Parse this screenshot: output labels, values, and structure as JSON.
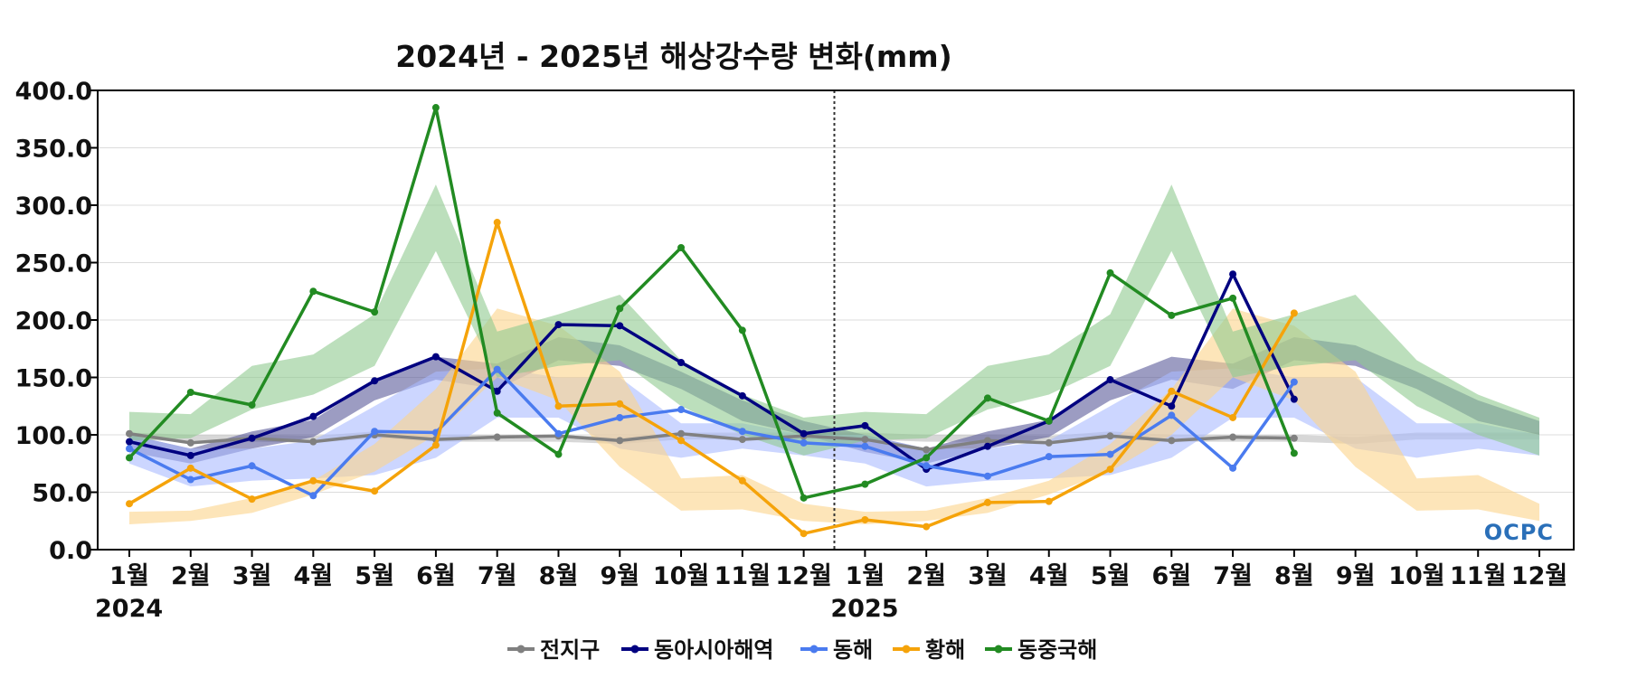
{
  "chart_data": {
    "type": "line",
    "title": "2024년 - 2025년 해상강수량 변화(mm)",
    "xlabel": "",
    "ylabel": "",
    "ylim": [
      0,
      400
    ],
    "yticks": [
      "0.0",
      "50.0",
      "100.0",
      "150.0",
      "200.0",
      "250.0",
      "300.0",
      "350.0",
      "400.0"
    ],
    "categories": [
      "1월",
      "2월",
      "3월",
      "4월",
      "5월",
      "6월",
      "7월",
      "8월",
      "9월",
      "10월",
      "11월",
      "12월",
      "1월",
      "2월",
      "3월",
      "4월",
      "5월",
      "6월",
      "7월",
      "8월",
      "9월",
      "10월",
      "11월",
      "12월"
    ],
    "year_labels": [
      {
        "index": 0,
        "label": "2024"
      },
      {
        "index": 12,
        "label": "2025"
      }
    ],
    "divider_after_index": 11,
    "grid": "horizontal",
    "legend_position": "bottom-center",
    "watermark": "OCPC",
    "series": [
      {
        "name": "전지구",
        "color": "#808080",
        "values": [
          101,
          93,
          97,
          94,
          100,
          96,
          98,
          99,
          95,
          101,
          96,
          99,
          96,
          87,
          95,
          93,
          99,
          95,
          98,
          97,
          null,
          null,
          null,
          null
        ]
      },
      {
        "name": "동아시아해역",
        "color": "#000080",
        "values": [
          94,
          82,
          97,
          116,
          147,
          168,
          138,
          196,
          195,
          163,
          134,
          101,
          108,
          70,
          90,
          112,
          148,
          125,
          240,
          131,
          null,
          null,
          null,
          null
        ]
      },
      {
        "name": "동해",
        "color": "#4a7bef",
        "values": [
          88,
          61,
          73,
          47,
          103,
          102,
          157,
          101,
          115,
          122,
          103,
          93,
          90,
          73,
          64,
          81,
          83,
          117,
          71,
          146,
          null,
          null,
          null,
          null
        ]
      },
      {
        "name": "황해",
        "color": "#f5a30a",
        "values": [
          40,
          71,
          44,
          60,
          51,
          91,
          285,
          125,
          127,
          95,
          60,
          14,
          26,
          20,
          41,
          42,
          70,
          138,
          115,
          206,
          null,
          null,
          null,
          null
        ]
      },
      {
        "name": "동중국해",
        "color": "#228b22",
        "values": [
          80,
          137,
          126,
          225,
          207,
          385,
          119,
          83,
          210,
          263,
          191,
          45,
          57,
          80,
          132,
          112,
          241,
          204,
          219,
          84,
          null,
          null,
          null,
          null
        ]
      }
    ],
    "bands": [
      {
        "series": "전지구",
        "color": "#bdbdbd",
        "lower": [
          96,
          94,
          94,
          93,
          97,
          94,
          94,
          94,
          92,
          96,
          96,
          96,
          96,
          94,
          94,
          93,
          97,
          94,
          94,
          94,
          92,
          96,
          96,
          96
        ],
        "upper": [
          102,
          100,
          100,
          99,
          103,
          100,
          100,
          100,
          98,
          102,
          102,
          102,
          102,
          100,
          100,
          99,
          103,
          100,
          100,
          100,
          98,
          102,
          102,
          102
        ]
      },
      {
        "series": "동아시아해역",
        "color": "#5a5a9a",
        "lower": [
          85,
          75,
          88,
          98,
          130,
          148,
          140,
          165,
          160,
          140,
          112,
          100,
          85,
          75,
          88,
          98,
          130,
          148,
          140,
          165,
          160,
          140,
          112,
          100
        ],
        "upper": [
          100,
          88,
          103,
          113,
          147,
          168,
          162,
          185,
          178,
          155,
          130,
          112,
          100,
          88,
          103,
          113,
          147,
          168,
          162,
          185,
          178,
          155,
          130,
          112
        ]
      },
      {
        "series": "동해",
        "color": "#aabbff",
        "lower": [
          75,
          55,
          60,
          62,
          65,
          80,
          115,
          115,
          88,
          80,
          88,
          82,
          75,
          55,
          60,
          62,
          65,
          80,
          115,
          115,
          88,
          80,
          88,
          82
        ],
        "upper": [
          100,
          88,
          88,
          95,
          125,
          155,
          158,
          150,
          150,
          110,
          110,
          100,
          100,
          88,
          88,
          95,
          125,
          155,
          158,
          150,
          150,
          110,
          110,
          100
        ]
      },
      {
        "series": "황해",
        "color": "#fbd38a",
        "lower": [
          22,
          25,
          32,
          48,
          68,
          100,
          150,
          130,
          72,
          34,
          35,
          25,
          22,
          25,
          32,
          48,
          68,
          100,
          150,
          130,
          72,
          34,
          35,
          25
        ],
        "upper": [
          33,
          34,
          45,
          60,
          92,
          140,
          210,
          195,
          155,
          62,
          65,
          40,
          33,
          34,
          45,
          60,
          92,
          140,
          210,
          195,
          155,
          62,
          65,
          40
        ]
      },
      {
        "series": "동중국해",
        "color": "#8fc98f",
        "lower": [
          95,
          97,
          122,
          135,
          160,
          260,
          150,
          160,
          165,
          125,
          100,
          82,
          95,
          97,
          122,
          135,
          160,
          260,
          150,
          160,
          165,
          125,
          100,
          82
        ],
        "upper": [
          120,
          118,
          160,
          170,
          205,
          318,
          190,
          205,
          222,
          165,
          135,
          115,
          120,
          118,
          160,
          170,
          205,
          318,
          190,
          205,
          222,
          165,
          135,
          115
        ]
      }
    ]
  }
}
